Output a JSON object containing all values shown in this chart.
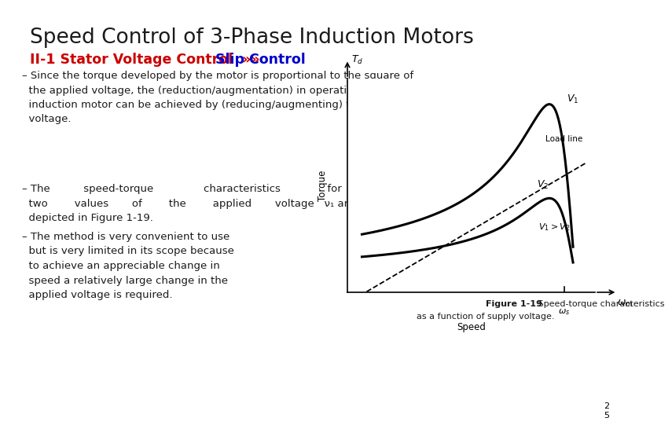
{
  "title": "Speed Control of 3-Phase Induction Motors",
  "subtitle_red": "II-1 Stator Voltage Control  »»",
  "subtitle_blue": " Slip Control",
  "bullet1_dash": "–",
  "bullet1_text": "Since the torque developed by the motor is proportional to the square of\n    the applied voltage, the (reduction/augmentation) in operating speed of an\n    induction motor can be achieved by (reducing/augmenting) the applied\n    voltage.",
  "bullet2_text": "The          speed-torque               characteristics              for\n    two        values       of        the        applied       voltage   ν₁ are\n    depicted in Figure 1-19.",
  "bullet3_text": "The method is very convenient to use\n    but is very limited in its scope because\n    to achieve an appreciable change in\n    speed a relatively large change in the\n    applied voltage is required.",
  "fig_caption_bold": "Figure 1-19",
  "fig_caption_normal": " Speed-torque characteristics\nas a function of supply voltage.",
  "page_num": "2\n5",
  "bg_color": "#ffffff",
  "title_color": "#1a1a1a",
  "subtitle_red_color": "#cc0000",
  "subtitle_blue_color": "#0000cc",
  "bullet_color": "#1a1a1a",
  "caption_color": "#1a1a1a"
}
